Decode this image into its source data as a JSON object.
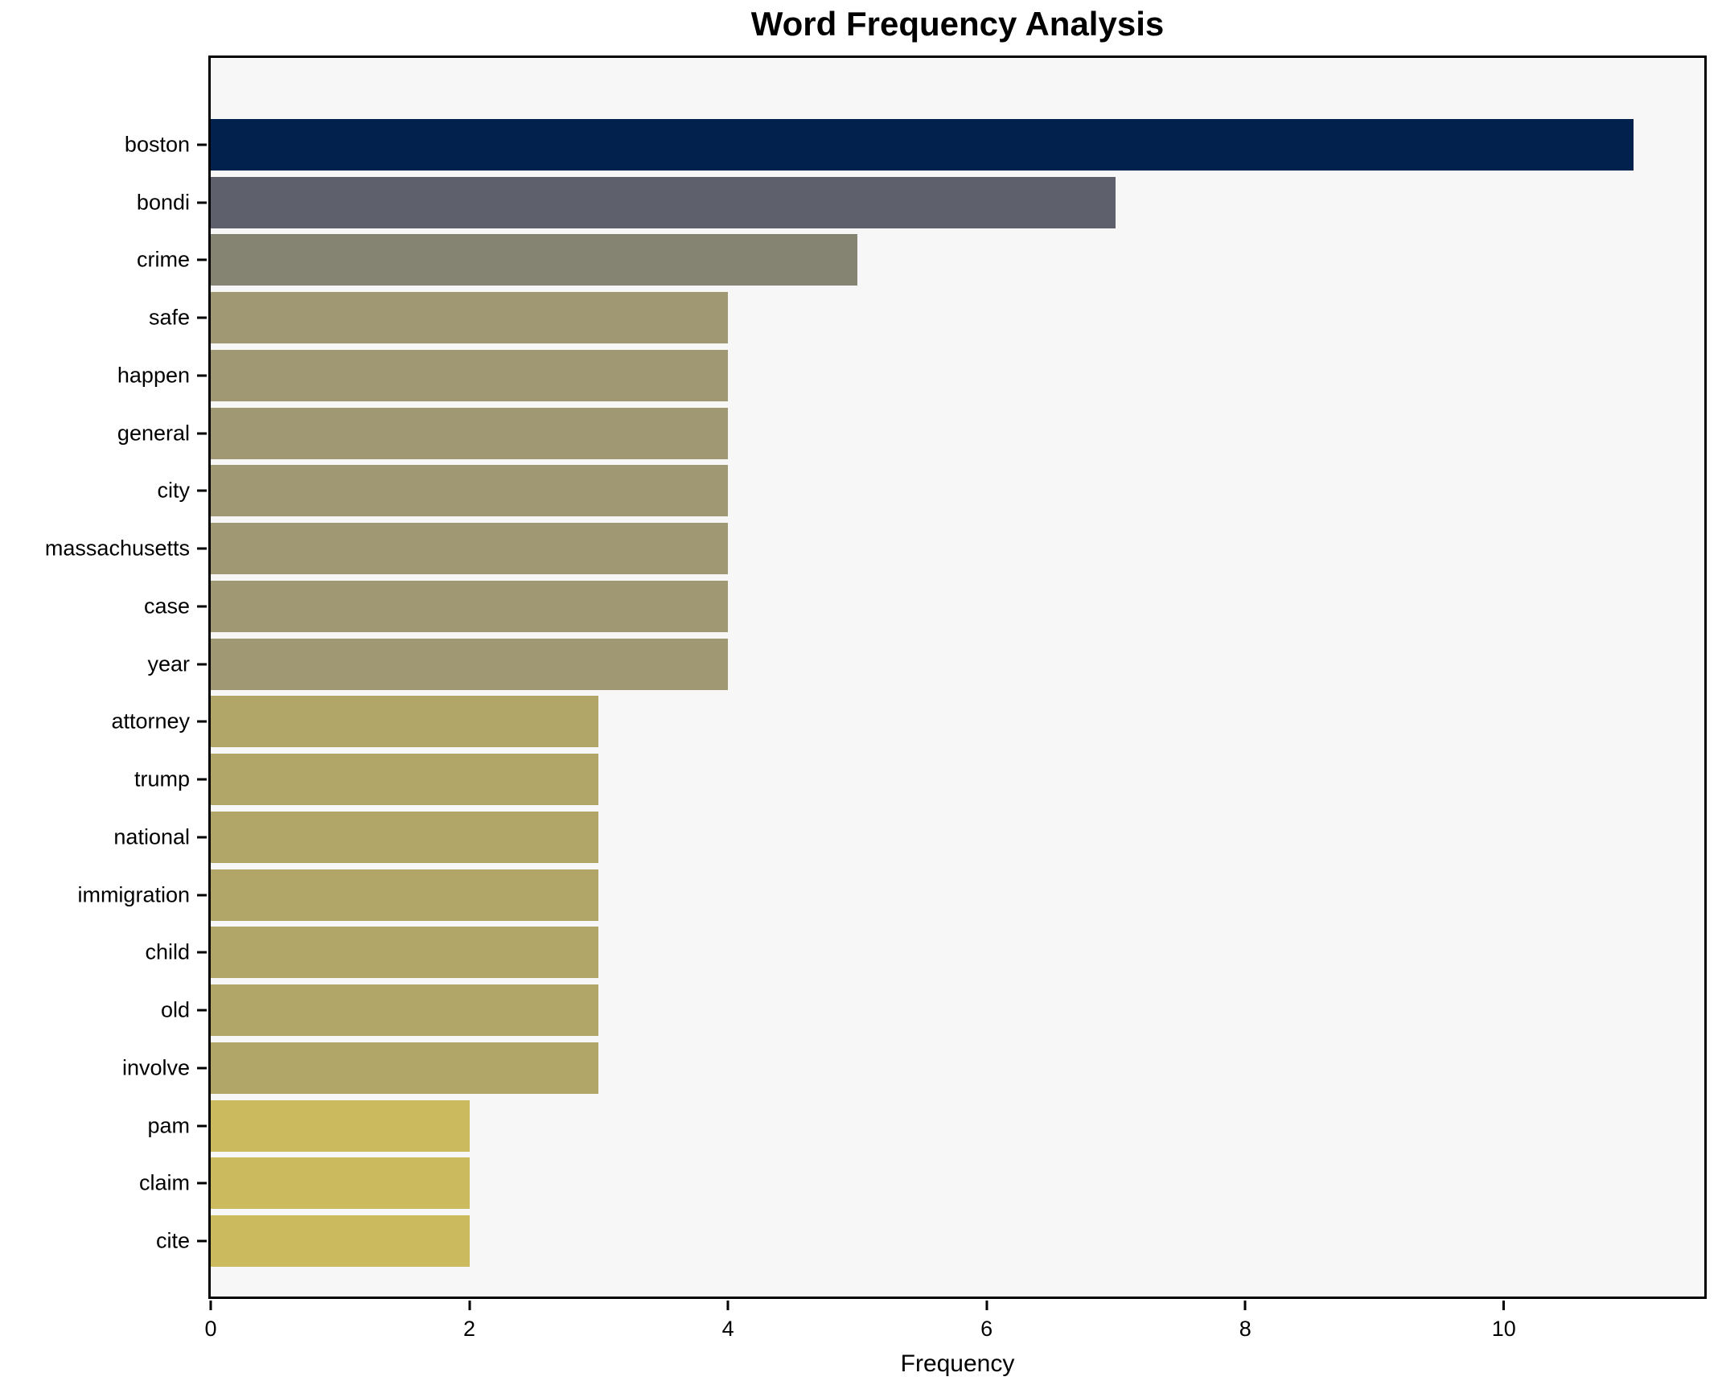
{
  "title": "Word Frequency Analysis",
  "chart_data": {
    "type": "bar",
    "orientation": "horizontal",
    "title": "Word Frequency Analysis",
    "xlabel": "Frequency",
    "ylabel": "",
    "categories": [
      "boston",
      "bondi",
      "crime",
      "safe",
      "happen",
      "general",
      "city",
      "massachusetts",
      "case",
      "year",
      "attorney",
      "trump",
      "national",
      "immigration",
      "child",
      "old",
      "involve",
      "pam",
      "claim",
      "cite"
    ],
    "values": [
      11,
      7,
      5,
      4,
      4,
      4,
      4,
      4,
      4,
      4,
      3,
      3,
      3,
      3,
      3,
      3,
      3,
      2,
      2,
      2
    ],
    "bar_colors": [
      "#02214d",
      "#5e616b",
      "#858371",
      "#a09873",
      "#a09873",
      "#a09873",
      "#a09873",
      "#a09873",
      "#a09873",
      "#a09873",
      "#b1a567",
      "#b1a567",
      "#b1a567",
      "#b1a567",
      "#b1a567",
      "#b1a567",
      "#b1a567",
      "#ccbb5e",
      "#ccbb5e",
      "#ccbb5e"
    ],
    "xticks": [
      0,
      2,
      4,
      6,
      8,
      10
    ],
    "xlim": [
      0,
      11.55
    ],
    "grid": false,
    "legend": null,
    "plot_background": "#f7f7f8",
    "figure_background": "#ffffff",
    "bar_height_ratio": 0.88
  }
}
